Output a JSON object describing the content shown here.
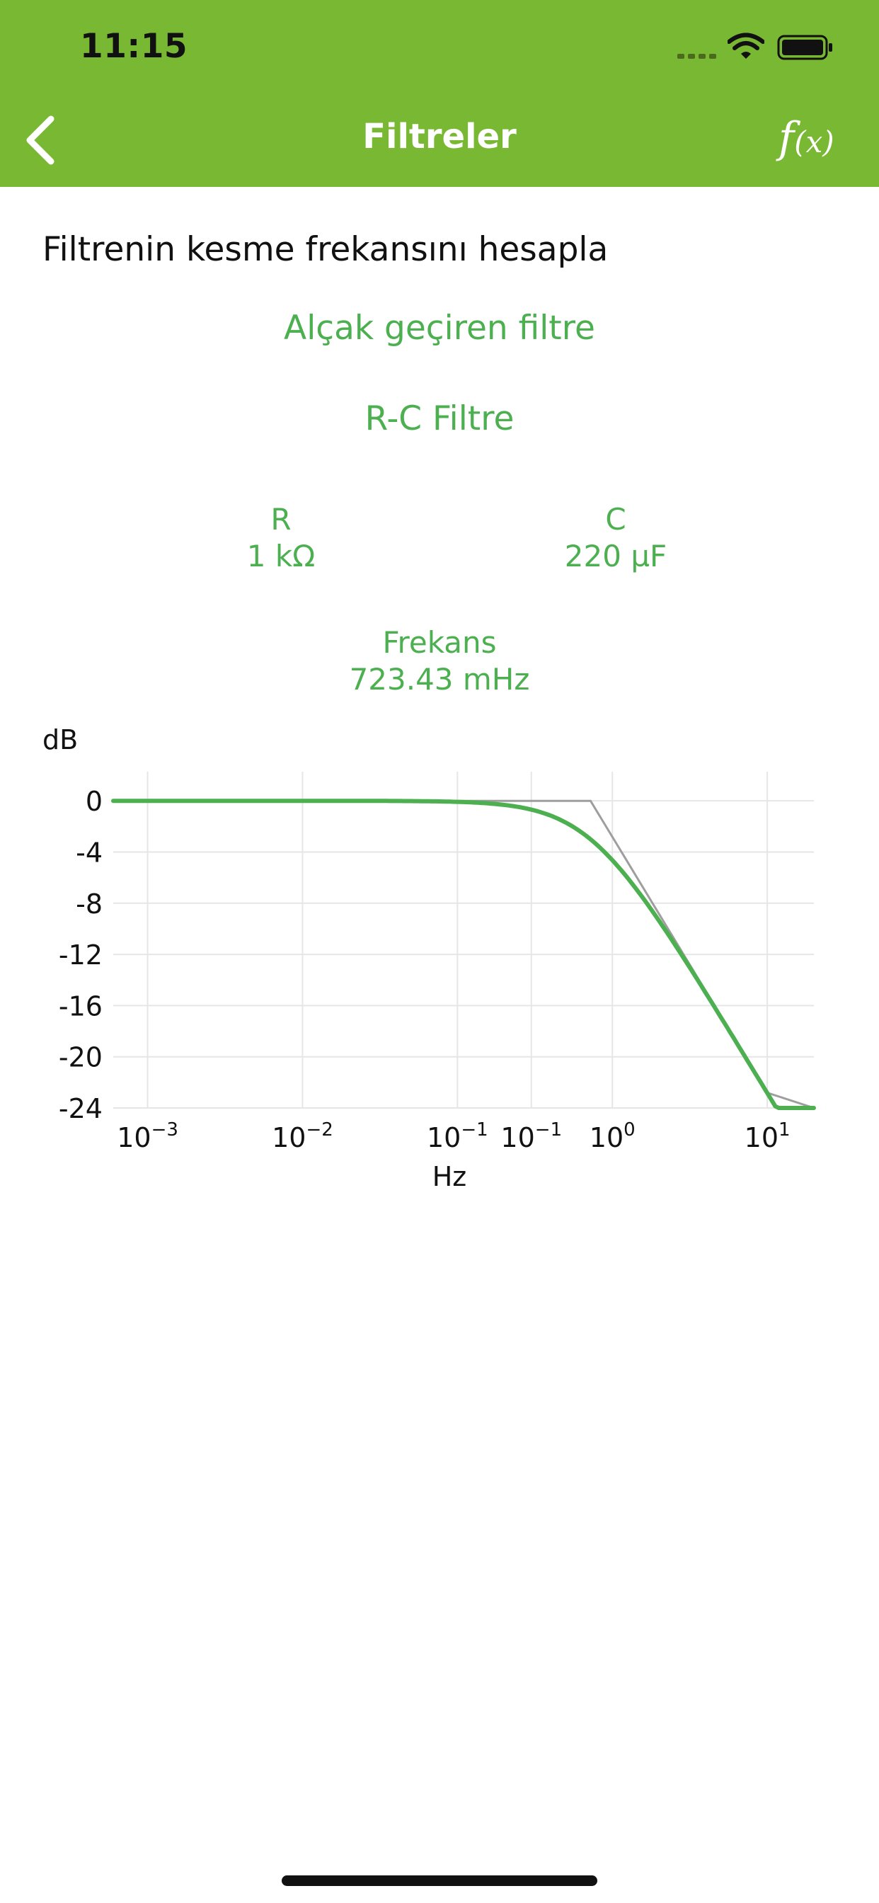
{
  "status_bar": {
    "time": "11:15",
    "icons": [
      "signal-icon",
      "wifi-icon",
      "battery-icon"
    ]
  },
  "nav": {
    "back_icon": "chevron-left-icon",
    "title": "Filtreler",
    "formula_icon_f": "f",
    "formula_icon_x": "(x)"
  },
  "content": {
    "intro": "Filtrenin kesme frekansını hesapla",
    "filter_type": "Alçak geçiren filtre",
    "filter_variant": "R-C Filtre",
    "params": [
      {
        "label": "R",
        "value": "1 kΩ"
      },
      {
        "label": "C",
        "value": "220 µF"
      }
    ],
    "result": {
      "label": "Frekans",
      "value": "723.43 mHz"
    }
  },
  "colors": {
    "header": "#79b833",
    "accent": "#4caf50",
    "asymptote": "#9e9e9e",
    "grid": "#e6e6e6"
  },
  "chart_data": {
    "type": "line",
    "ylabel": "dB",
    "xlabel": "Hz",
    "x_scale": "log",
    "grid": true,
    "xlim": [
      0.0006,
      20
    ],
    "ylim": [
      -24,
      2
    ],
    "yticks": [
      0,
      -4,
      -8,
      -12,
      -16,
      -20,
      -24
    ],
    "xtick_labels": [
      {
        "base": "10",
        "exp": "−3"
      },
      {
        "base": "10",
        "exp": "−2"
      },
      {
        "base": "10",
        "exp": "−1"
      },
      {
        "base": "10",
        "exp": "−1"
      },
      {
        "base": "10",
        "exp": "0"
      },
      {
        "base": "10",
        "exp": "1"
      }
    ],
    "cutoff_hz": 0.72343,
    "series": [
      {
        "color": "#4caf50",
        "x": [
          0.0006,
          0.001,
          0.01,
          0.05,
          0.1,
          0.2,
          0.3,
          0.5,
          0.72343,
          1,
          2,
          3,
          5,
          10,
          20
        ],
        "y": [
          0,
          0,
          0,
          -0.02,
          -0.08,
          -0.32,
          -0.68,
          -1.65,
          -3.01,
          -4.72,
          -9.12,
          -12.55,
          -16.84,
          -22.82,
          -24
        ]
      },
      {
        "color": "#9e9e9e",
        "x": [
          0.0006,
          0.001,
          0.01,
          0.1,
          0.5,
          0.72343,
          1,
          2,
          5,
          10,
          20
        ],
        "y": [
          0,
          0,
          0,
          0,
          0,
          0,
          -2.81,
          -8.83,
          -16.79,
          -22.81,
          -24
        ]
      }
    ]
  }
}
